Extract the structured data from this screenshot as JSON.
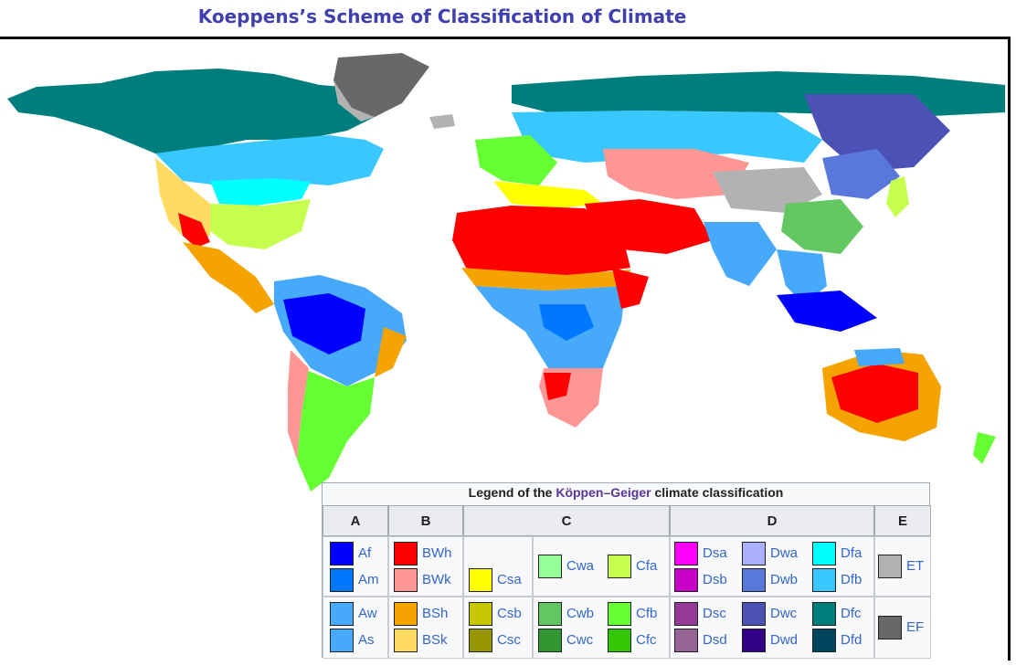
{
  "title": "Koeppens’s Scheme of Classification of Climate",
  "legend": {
    "caption_prefix": "Legend of the ",
    "caption_link": "Köppen–Geiger",
    "caption_suffix": " climate classification",
    "groups": [
      "A",
      "B",
      "C",
      "D",
      "E"
    ],
    "classes": {
      "Af": "#0000fe",
      "Am": "#0077ff",
      "Aw": "#46a9fa",
      "As": "#46a9fa",
      "BWh": "#fe0000",
      "BWk": "#fe9695",
      "BSh": "#f5a301",
      "BSk": "#ffdb63",
      "Csa": "#ffff00",
      "Csb": "#c6c700",
      "Csc": "#969600",
      "Cwa": "#96ff96",
      "Cwb": "#63c764",
      "Cwc": "#329633",
      "Cfa": "#c6ff4e",
      "Cfb": "#66ff33",
      "Cfc": "#33c701",
      "Dsa": "#ff00fe",
      "Dsb": "#c600c7",
      "Dsc": "#963896",
      "Dsd": "#966495",
      "Dwa": "#abb1ff",
      "Dwb": "#5a77db",
      "Dwc": "#4c51b5",
      "Dwd": "#320087",
      "Dfa": "#00ffff",
      "Dfb": "#38c7ff",
      "Dfc": "#007e7d",
      "Dfd": "#00455e",
      "ET": "#b2b2b2",
      "EF": "#686868"
    }
  },
  "map": {
    "ocean": "#ffffff",
    "border": "#222222"
  }
}
